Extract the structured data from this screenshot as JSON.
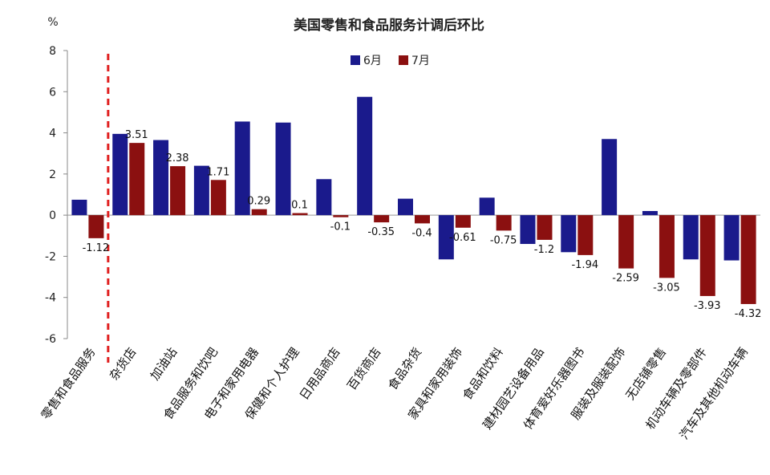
{
  "chart_data": {
    "type": "bar",
    "title": "美国零售和食品服务计调后环比",
    "ylabel": "%",
    "ylim": [
      -6,
      8
    ],
    "yticks": [
      8,
      6,
      4,
      2,
      0,
      -2,
      -4,
      -6
    ],
    "grid": false,
    "legend_position": "top-center",
    "categories": [
      "零售和食品服务",
      "杂货店",
      "加油站",
      "食品服务和饮吧",
      "电子和家用电器",
      "保健和个人护理",
      "日用品商店",
      "百货商店",
      "食品杂货",
      "家具和家用装饰",
      "食品和饮料",
      "建材园艺设备用品",
      "体育爱好乐器图书",
      "服装及服装配饰",
      "无店铺零售",
      "机动车辆及零部件",
      "汽车及其他机动车辆"
    ],
    "series": [
      {
        "name": "6月",
        "color": "#1a1a8c",
        "values": [
          0.75,
          3.95,
          3.65,
          2.4,
          4.55,
          4.5,
          1.75,
          5.75,
          0.8,
          -2.15,
          0.85,
          -1.4,
          -1.8,
          3.7,
          0.2,
          -2.15,
          -2.2
        ]
      },
      {
        "name": "7月",
        "color": "#8b1010",
        "values": [
          -1.12,
          3.51,
          2.38,
          1.71,
          0.29,
          0.1,
          -0.1,
          -0.35,
          -0.4,
          -0.61,
          -0.75,
          -1.2,
          -1.94,
          -2.59,
          -3.05,
          -3.93,
          -4.32
        ]
      }
    ],
    "data_labels": [
      "-1.12",
      "3.51",
      "2.38",
      "1.71",
      "0.29",
      "0.1",
      "-0.1",
      "-0.35",
      "-0.4",
      "-0.61",
      "-0.75",
      "-1.2",
      "-1.94",
      "-2.59",
      "-3.05",
      "-3.93",
      "-4.32"
    ],
    "reference_line": {
      "after_category_index": 0,
      "color": "#e02020",
      "style": "dashed"
    }
  }
}
